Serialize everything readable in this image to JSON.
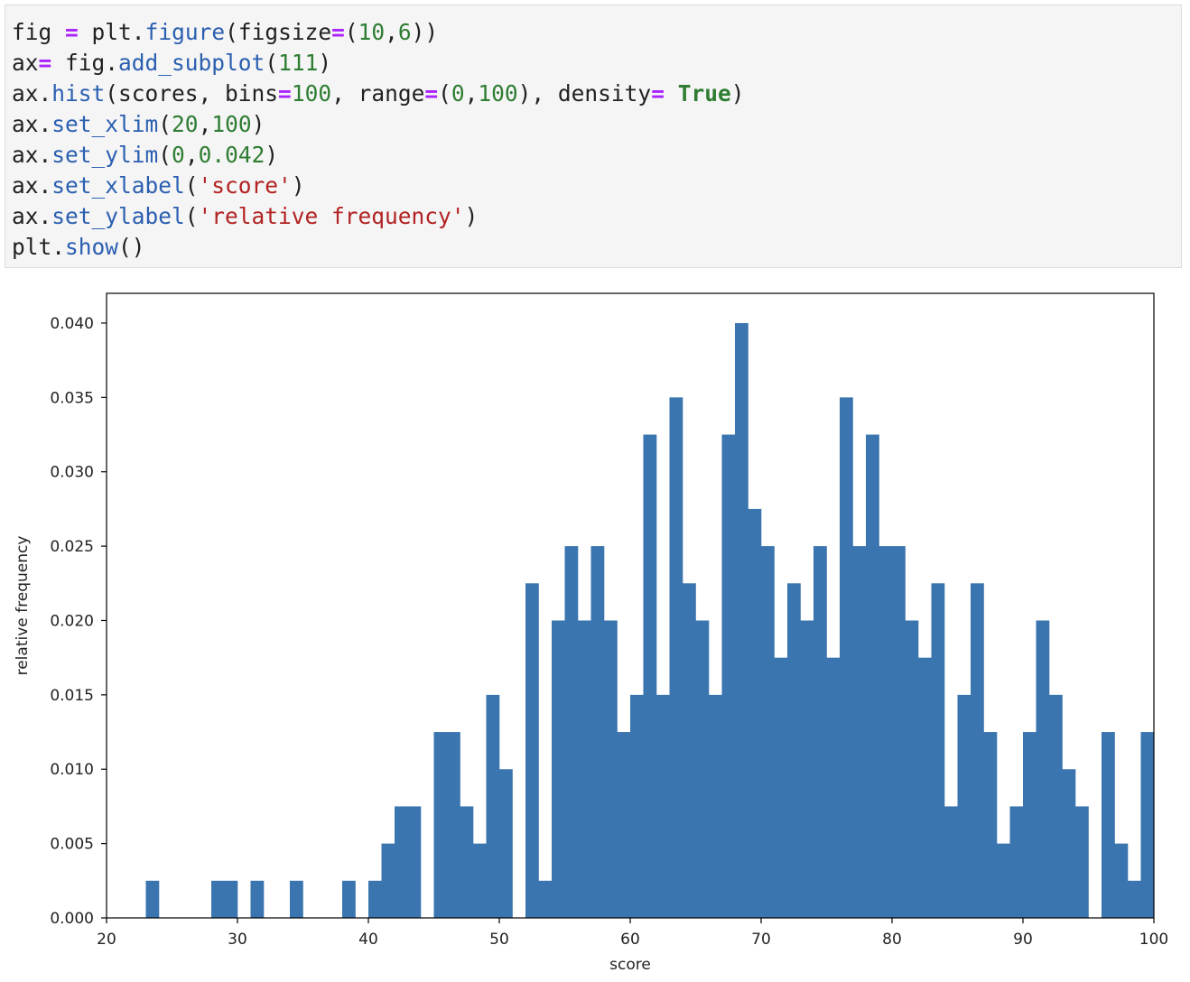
{
  "code": {
    "lines": [
      [
        {
          "t": "fig",
          "c": "name"
        },
        {
          "t": " ",
          "c": "punct"
        },
        {
          "t": "=",
          "c": "op"
        },
        {
          "t": " plt.",
          "c": "name"
        },
        {
          "t": "figure",
          "c": "fn"
        },
        {
          "t": "(figsize",
          "c": "name"
        },
        {
          "t": "=",
          "c": "op"
        },
        {
          "t": "(",
          "c": "punct"
        },
        {
          "t": "10",
          "c": "num"
        },
        {
          "t": ",",
          "c": "punct"
        },
        {
          "t": "6",
          "c": "num"
        },
        {
          "t": "))",
          "c": "punct"
        }
      ],
      [
        {
          "t": "ax",
          "c": "name"
        },
        {
          "t": "=",
          "c": "op"
        },
        {
          "t": " fig.",
          "c": "name"
        },
        {
          "t": "add_subplot",
          "c": "fn"
        },
        {
          "t": "(",
          "c": "punct"
        },
        {
          "t": "111",
          "c": "num"
        },
        {
          "t": ")",
          "c": "punct"
        }
      ],
      [
        {
          "t": "ax.",
          "c": "name"
        },
        {
          "t": "hist",
          "c": "fn"
        },
        {
          "t": "(scores, bins",
          "c": "name"
        },
        {
          "t": "=",
          "c": "op"
        },
        {
          "t": "100",
          "c": "num"
        },
        {
          "t": ", range",
          "c": "name"
        },
        {
          "t": "=",
          "c": "op"
        },
        {
          "t": "(",
          "c": "punct"
        },
        {
          "t": "0",
          "c": "num"
        },
        {
          "t": ",",
          "c": "punct"
        },
        {
          "t": "100",
          "c": "num"
        },
        {
          "t": "), density",
          "c": "name"
        },
        {
          "t": "=",
          "c": "op"
        },
        {
          "t": " ",
          "c": "punct"
        },
        {
          "t": "True",
          "c": "kw"
        },
        {
          "t": ")",
          "c": "punct"
        }
      ],
      [
        {
          "t": "ax.",
          "c": "name"
        },
        {
          "t": "set_xlim",
          "c": "fn"
        },
        {
          "t": "(",
          "c": "punct"
        },
        {
          "t": "20",
          "c": "num"
        },
        {
          "t": ",",
          "c": "punct"
        },
        {
          "t": "100",
          "c": "num"
        },
        {
          "t": ")",
          "c": "punct"
        }
      ],
      [
        {
          "t": "ax.",
          "c": "name"
        },
        {
          "t": "set_ylim",
          "c": "fn"
        },
        {
          "t": "(",
          "c": "punct"
        },
        {
          "t": "0",
          "c": "num"
        },
        {
          "t": ",",
          "c": "punct"
        },
        {
          "t": "0.042",
          "c": "num"
        },
        {
          "t": ")",
          "c": "punct"
        }
      ],
      [
        {
          "t": "ax.",
          "c": "name"
        },
        {
          "t": "set_xlabel",
          "c": "fn"
        },
        {
          "t": "(",
          "c": "punct"
        },
        {
          "t": "'score'",
          "c": "str"
        },
        {
          "t": ")",
          "c": "punct"
        }
      ],
      [
        {
          "t": "ax.",
          "c": "name"
        },
        {
          "t": "set_ylabel",
          "c": "fn"
        },
        {
          "t": "(",
          "c": "punct"
        },
        {
          "t": "'relative frequency'",
          "c": "str"
        },
        {
          "t": ")",
          "c": "punct"
        }
      ],
      [
        {
          "t": "plt.",
          "c": "name"
        },
        {
          "t": "show",
          "c": "fn"
        },
        {
          "t": "()",
          "c": "punct"
        }
      ]
    ]
  },
  "chart_data": {
    "type": "bar",
    "title": "",
    "xlabel": "score",
    "ylabel": "relative frequency",
    "xlim": [
      20,
      100
    ],
    "ylim": [
      0,
      0.042
    ],
    "grid": false,
    "bar_color": "#3a75af",
    "bin_width": 1,
    "x_ticks": [
      20,
      30,
      40,
      50,
      60,
      70,
      80,
      90,
      100
    ],
    "x_tick_labels": [
      "20",
      "30",
      "40",
      "50",
      "60",
      "70",
      "80",
      "90",
      "100"
    ],
    "y_ticks": [
      0,
      0.005,
      0.01,
      0.015,
      0.02,
      0.025,
      0.03,
      0.035,
      0.04
    ],
    "y_tick_labels": [
      "0.000",
      "0.005",
      "0.010",
      "0.015",
      "0.020",
      "0.025",
      "0.030",
      "0.035",
      "0.040"
    ],
    "bins": [
      {
        "x": 23,
        "y": 0.0025
      },
      {
        "x": 28,
        "y": 0.0025
      },
      {
        "x": 29,
        "y": 0.0025
      },
      {
        "x": 31,
        "y": 0.0025
      },
      {
        "x": 34,
        "y": 0.0025
      },
      {
        "x": 38,
        "y": 0.0025
      },
      {
        "x": 40,
        "y": 0.0025
      },
      {
        "x": 41,
        "y": 0.005
      },
      {
        "x": 42,
        "y": 0.0075
      },
      {
        "x": 43,
        "y": 0.0075
      },
      {
        "x": 45,
        "y": 0.0125
      },
      {
        "x": 46,
        "y": 0.0125
      },
      {
        "x": 47,
        "y": 0.0075
      },
      {
        "x": 48,
        "y": 0.005
      },
      {
        "x": 49,
        "y": 0.015
      },
      {
        "x": 50,
        "y": 0.01
      },
      {
        "x": 52,
        "y": 0.0225
      },
      {
        "x": 53,
        "y": 0.0025
      },
      {
        "x": 54,
        "y": 0.02
      },
      {
        "x": 55,
        "y": 0.025
      },
      {
        "x": 56,
        "y": 0.02
      },
      {
        "x": 57,
        "y": 0.025
      },
      {
        "x": 58,
        "y": 0.02
      },
      {
        "x": 59,
        "y": 0.0125
      },
      {
        "x": 60,
        "y": 0.015
      },
      {
        "x": 61,
        "y": 0.0325
      },
      {
        "x": 62,
        "y": 0.015
      },
      {
        "x": 63,
        "y": 0.035
      },
      {
        "x": 64,
        "y": 0.0225
      },
      {
        "x": 65,
        "y": 0.02
      },
      {
        "x": 66,
        "y": 0.015
      },
      {
        "x": 67,
        "y": 0.0325
      },
      {
        "x": 68,
        "y": 0.04
      },
      {
        "x": 69,
        "y": 0.0275
      },
      {
        "x": 70,
        "y": 0.025
      },
      {
        "x": 71,
        "y": 0.0175
      },
      {
        "x": 72,
        "y": 0.0225
      },
      {
        "x": 73,
        "y": 0.02
      },
      {
        "x": 74,
        "y": 0.025
      },
      {
        "x": 75,
        "y": 0.0175
      },
      {
        "x": 76,
        "y": 0.035
      },
      {
        "x": 77,
        "y": 0.025
      },
      {
        "x": 78,
        "y": 0.0325
      },
      {
        "x": 79,
        "y": 0.025
      },
      {
        "x": 80,
        "y": 0.025
      },
      {
        "x": 81,
        "y": 0.02
      },
      {
        "x": 82,
        "y": 0.0175
      },
      {
        "x": 83,
        "y": 0.0225
      },
      {
        "x": 84,
        "y": 0.0075
      },
      {
        "x": 85,
        "y": 0.015
      },
      {
        "x": 86,
        "y": 0.0225
      },
      {
        "x": 87,
        "y": 0.0125
      },
      {
        "x": 88,
        "y": 0.005
      },
      {
        "x": 89,
        "y": 0.0075
      },
      {
        "x": 90,
        "y": 0.0125
      },
      {
        "x": 91,
        "y": 0.02
      },
      {
        "x": 92,
        "y": 0.015
      },
      {
        "x": 93,
        "y": 0.01
      },
      {
        "x": 94,
        "y": 0.0075
      },
      {
        "x": 96,
        "y": 0.0125
      },
      {
        "x": 97,
        "y": 0.005
      },
      {
        "x": 98,
        "y": 0.0025
      },
      {
        "x": 99,
        "y": 0.0125
      }
    ]
  }
}
